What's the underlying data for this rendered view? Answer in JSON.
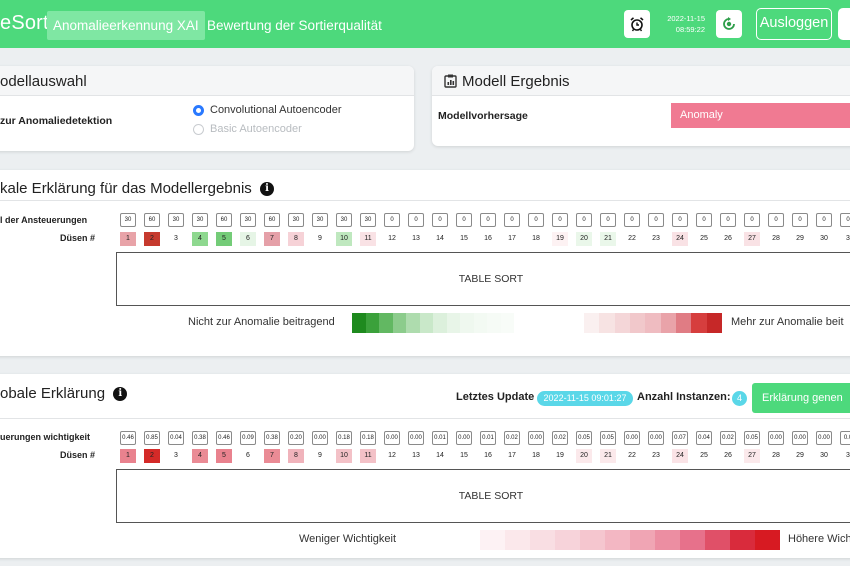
{
  "header": {
    "brand": "eSort",
    "nav": [
      "Anomalieerkennung XAI",
      "Bewertung der Sortierqualität"
    ],
    "date": "2022-11-15",
    "time": "08:59:22",
    "logout_label": "Ausloggen",
    "accent": "#4dd97c"
  },
  "model_selection": {
    "title": "odellauswahl",
    "label": "zur Anomaliedetektion",
    "options": [
      {
        "label": "Convolutional Autoencoder",
        "selected": true
      },
      {
        "label": "Basic Autoencoder",
        "selected": false
      }
    ]
  },
  "model_result": {
    "title": "Modell Ergebnis",
    "label": "Modellvorhersage",
    "prediction": "Anomaly",
    "prediction_color": "#f07a92"
  },
  "local_explanation": {
    "title": "kale Erklärung für das Modellergebnis",
    "row1_label": "l der Ansteuerungen",
    "row2_label": "Düsen #",
    "values": [
      "30",
      "60",
      "30",
      "30",
      "60",
      "30",
      "60",
      "30",
      "30",
      "30",
      "30",
      "0",
      "0",
      "0",
      "0",
      "0",
      "0",
      "0",
      "0",
      "0",
      "0",
      "0",
      "0",
      "0",
      "0",
      "0",
      "0",
      "0",
      "0",
      "0",
      "0"
    ],
    "nozzles": [
      "1",
      "2",
      "3",
      "4",
      "5",
      "6",
      "7",
      "8",
      "9",
      "10",
      "11",
      "12",
      "13",
      "14",
      "15",
      "16",
      "17",
      "18",
      "19",
      "20",
      "21",
      "22",
      "23",
      "24",
      "25",
      "26",
      "27",
      "28",
      "29",
      "30",
      "3"
    ],
    "nozzle_colors": [
      "#e8a3a8",
      "#c63a2e",
      "#ffffff",
      "#8ed88f",
      "#74cc78",
      "#e6f5e6",
      "#e5a0a8",
      "#f6d2d7",
      "#ffffff",
      "#bfe8bf",
      "#f9e2e5",
      "#ffffff",
      "#ffffff",
      "#ffffff",
      "#ffffff",
      "#ffffff",
      "#ffffff",
      "#ffffff",
      "#fdf2f3",
      "#eaf7ea",
      "#eaf7ea",
      "#ffffff",
      "#ffffff",
      "#f9e2e5",
      "#ffffff",
      "#ffffff",
      "#f9e2e5",
      "#ffffff",
      "#ffffff",
      "#ffffff",
      "#ffffff"
    ],
    "table_label": "TABLE SORT",
    "legend_left": "Nicht zur Anomalie beitragend",
    "legend_right": "Mehr zur Anomalie beit",
    "green_scale": [
      "#1e8a1e",
      "#3ba13b",
      "#62b862",
      "#8ccc8c",
      "#aedcae",
      "#c9e8c9",
      "#dcf0dc",
      "#e8f5e8",
      "#eff8ef",
      "#f3faf3",
      "#f6fbf6",
      "#f8fcf8"
    ],
    "red_scale": [
      "#faf0f0",
      "#f7e3e3",
      "#f4d6d8",
      "#f1c8cb",
      "#efbcc1",
      "#e9a3a9",
      "#e07c84",
      "#d63e3e",
      "#c62828"
    ]
  },
  "global_explanation": {
    "title": "obale Erklärung",
    "last_update_label": "Letztes Update",
    "last_update": "2022-11-15 09:01:27",
    "instances_label": "Anzahl Instanzen:",
    "instances": "4",
    "generate_label": "Erklärung genen",
    "row1_label": "uerungen wichtigkeit",
    "row2_label": "Düsen #",
    "values": [
      "0.46",
      "0.85",
      "0.04",
      "0.38",
      "0.46",
      "0.09",
      "0.38",
      "0.20",
      "0.00",
      "0.18",
      "0.18",
      "0.00",
      "0.00",
      "0.01",
      "0.00",
      "0.01",
      "0.02",
      "0.00",
      "0.02",
      "0.05",
      "0.05",
      "0.00",
      "0.00",
      "0.07",
      "0.04",
      "0.02",
      "0.05",
      "0.00",
      "0.00",
      "0.00",
      "0.0"
    ],
    "nozzles": [
      "1",
      "2",
      "3",
      "4",
      "5",
      "6",
      "7",
      "8",
      "9",
      "10",
      "11",
      "12",
      "13",
      "14",
      "15",
      "16",
      "17",
      "18",
      "19",
      "20",
      "21",
      "22",
      "23",
      "24",
      "25",
      "26",
      "27",
      "28",
      "29",
      "30",
      "3"
    ],
    "nozzle_colors": [
      "#e9828e",
      "#d42a28",
      "#ffffff",
      "#ea8b95",
      "#e9828e",
      "#ffffff",
      "#ea8b95",
      "#f0b3bb",
      "#ffffff",
      "#f3c1c7",
      "#f3c1c7",
      "#ffffff",
      "#ffffff",
      "#ffffff",
      "#ffffff",
      "#ffffff",
      "#ffffff",
      "#ffffff",
      "#ffffff",
      "#fbe9eb",
      "#fbe9eb",
      "#ffffff",
      "#ffffff",
      "#fae3e6",
      "#ffffff",
      "#ffffff",
      "#fbe9eb",
      "#ffffff",
      "#ffffff",
      "#ffffff",
      "#ffffff"
    ],
    "table_label": "TABLE SORT",
    "legend_left": "Weniger Wichtigkeit",
    "legend_right": "Höhere Wich",
    "red_scale": [
      "#fdf2f4",
      "#fbe8eb",
      "#f9dee3",
      "#f7d3da",
      "#f5c6cf",
      "#f3b7c3",
      "#f0a5b4",
      "#ec8ea2",
      "#e7718b",
      "#e05068",
      "#d92b3c",
      "#d71a22"
    ]
  }
}
